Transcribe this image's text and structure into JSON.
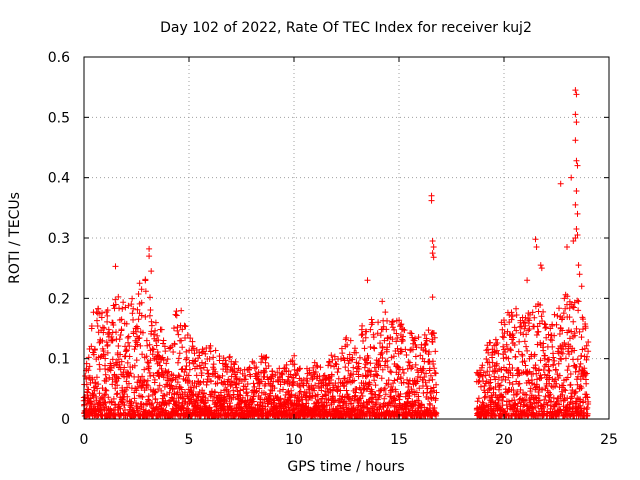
{
  "chart_data": {
    "type": "scatter",
    "title": "Day 102 of 2022, Rate Of TEC Index for receiver kuj2",
    "xlabel": "GPS time / hours",
    "ylabel": "ROTI / TECUs",
    "xlim": [
      0,
      25
    ],
    "ylim": [
      0,
      0.6
    ],
    "xticks": [
      0,
      5,
      10,
      15,
      20,
      25
    ],
    "yticks": [
      0,
      0.1,
      0.2,
      0.3,
      0.4,
      0.5,
      0.6
    ],
    "xtick_labels": [
      "0",
      "5",
      "10",
      "15",
      "20",
      "25"
    ],
    "ytick_labels": [
      "0",
      "0.1",
      "0.2",
      "0.3",
      "0.4",
      "0.5",
      "0.6"
    ],
    "grid": true,
    "marker": "+",
    "color": "#ff0000",
    "data_gap_hours": [
      16.8,
      18.7
    ],
    "envelope": [
      {
        "x": 0.0,
        "y": 0.06
      },
      {
        "x": 0.5,
        "y": 0.19
      },
      {
        "x": 1.0,
        "y": 0.17
      },
      {
        "x": 1.5,
        "y": 0.2
      },
      {
        "x": 2.0,
        "y": 0.19
      },
      {
        "x": 2.5,
        "y": 0.21
      },
      {
        "x": 3.0,
        "y": 0.23
      },
      {
        "x": 3.5,
        "y": 0.16
      },
      {
        "x": 4.0,
        "y": 0.12
      },
      {
        "x": 4.5,
        "y": 0.19
      },
      {
        "x": 5.0,
        "y": 0.13
      },
      {
        "x": 5.5,
        "y": 0.12
      },
      {
        "x": 6.0,
        "y": 0.12
      },
      {
        "x": 6.5,
        "y": 0.1
      },
      {
        "x": 7.0,
        "y": 0.1
      },
      {
        "x": 7.5,
        "y": 0.08
      },
      {
        "x": 8.0,
        "y": 0.09
      },
      {
        "x": 8.5,
        "y": 0.11
      },
      {
        "x": 9.0,
        "y": 0.08
      },
      {
        "x": 9.5,
        "y": 0.08
      },
      {
        "x": 10.0,
        "y": 0.1
      },
      {
        "x": 10.5,
        "y": 0.08
      },
      {
        "x": 11.0,
        "y": 0.09
      },
      {
        "x": 11.5,
        "y": 0.08
      },
      {
        "x": 12.0,
        "y": 0.12
      },
      {
        "x": 12.5,
        "y": 0.13
      },
      {
        "x": 13.0,
        "y": 0.14
      },
      {
        "x": 13.5,
        "y": 0.16
      },
      {
        "x": 14.0,
        "y": 0.18
      },
      {
        "x": 14.5,
        "y": 0.17
      },
      {
        "x": 15.0,
        "y": 0.16
      },
      {
        "x": 15.5,
        "y": 0.14
      },
      {
        "x": 16.0,
        "y": 0.13
      },
      {
        "x": 16.5,
        "y": 0.15
      },
      {
        "x": 18.8,
        "y": 0.07
      },
      {
        "x": 19.2,
        "y": 0.12
      },
      {
        "x": 19.6,
        "y": 0.13
      },
      {
        "x": 20.0,
        "y": 0.17
      },
      {
        "x": 20.5,
        "y": 0.18
      },
      {
        "x": 21.0,
        "y": 0.17
      },
      {
        "x": 21.5,
        "y": 0.2
      },
      {
        "x": 22.0,
        "y": 0.17
      },
      {
        "x": 22.5,
        "y": 0.17
      },
      {
        "x": 23.0,
        "y": 0.21
      },
      {
        "x": 23.5,
        "y": 0.21
      },
      {
        "x": 24.0,
        "y": 0.13
      }
    ],
    "notable_points": [
      {
        "x": 1.5,
        "y": 0.253
      },
      {
        "x": 3.1,
        "y": 0.282
      },
      {
        "x": 3.1,
        "y": 0.27
      },
      {
        "x": 3.2,
        "y": 0.245
      },
      {
        "x": 2.65,
        "y": 0.225
      },
      {
        "x": 13.5,
        "y": 0.23
      },
      {
        "x": 14.2,
        "y": 0.195
      },
      {
        "x": 16.55,
        "y": 0.37
      },
      {
        "x": 16.55,
        "y": 0.362
      },
      {
        "x": 16.6,
        "y": 0.295
      },
      {
        "x": 16.65,
        "y": 0.285
      },
      {
        "x": 16.6,
        "y": 0.275
      },
      {
        "x": 16.65,
        "y": 0.268
      },
      {
        "x": 16.6,
        "y": 0.202
      },
      {
        "x": 21.5,
        "y": 0.298
      },
      {
        "x": 21.55,
        "y": 0.285
      },
      {
        "x": 21.1,
        "y": 0.23
      },
      {
        "x": 21.75,
        "y": 0.255
      },
      {
        "x": 21.8,
        "y": 0.25
      },
      {
        "x": 22.7,
        "y": 0.39
      },
      {
        "x": 23.0,
        "y": 0.285
      },
      {
        "x": 23.3,
        "y": 0.295
      },
      {
        "x": 23.2,
        "y": 0.4
      },
      {
        "x": 23.4,
        "y": 0.545
      },
      {
        "x": 23.45,
        "y": 0.538
      },
      {
        "x": 23.4,
        "y": 0.505
      },
      {
        "x": 23.45,
        "y": 0.492
      },
      {
        "x": 23.4,
        "y": 0.462
      },
      {
        "x": 23.45,
        "y": 0.428
      },
      {
        "x": 23.5,
        "y": 0.42
      },
      {
        "x": 23.45,
        "y": 0.378
      },
      {
        "x": 23.4,
        "y": 0.355
      },
      {
        "x": 23.5,
        "y": 0.34
      },
      {
        "x": 23.45,
        "y": 0.315
      },
      {
        "x": 23.5,
        "y": 0.305
      },
      {
        "x": 23.4,
        "y": 0.3
      },
      {
        "x": 23.55,
        "y": 0.255
      },
      {
        "x": 23.6,
        "y": 0.24
      },
      {
        "x": 23.7,
        "y": 0.22
      }
    ]
  }
}
